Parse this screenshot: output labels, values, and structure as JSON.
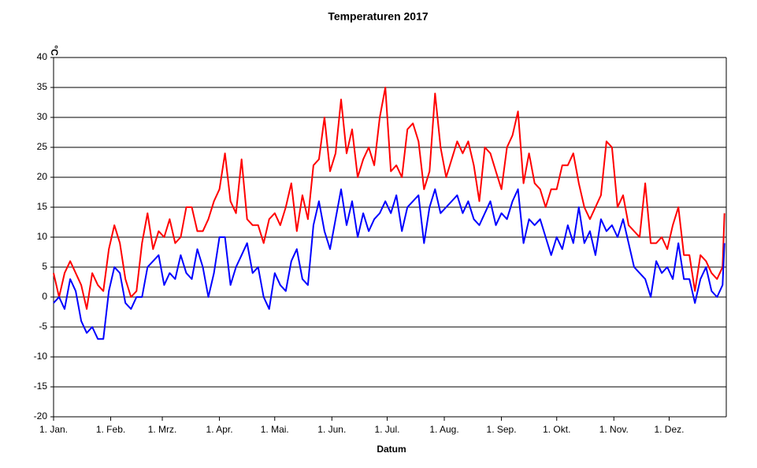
{
  "chart_data": {
    "type": "line",
    "title": "Temperaturen 2017",
    "x_label": "Datum",
    "y_label": "°C",
    "x": [
      0,
      3,
      6,
      9,
      12,
      15,
      18,
      21,
      24,
      27,
      30,
      33,
      36,
      39,
      42,
      45,
      48,
      51,
      54,
      57,
      60,
      63,
      66,
      69,
      72,
      75,
      78,
      81,
      84,
      87,
      90,
      93,
      96,
      99,
      102,
      105,
      108,
      111,
      114,
      117,
      120,
      123,
      126,
      129,
      132,
      135,
      138,
      141,
      144,
      147,
      150,
      153,
      156,
      159,
      162,
      165,
      168,
      171,
      174,
      177,
      180,
      183,
      186,
      189,
      192,
      195,
      198,
      201,
      204,
      207,
      210,
      213,
      216,
      219,
      222,
      225,
      228,
      231,
      234,
      237,
      240,
      243,
      246,
      249,
      252,
      255,
      258,
      261,
      264,
      267,
      270,
      273,
      276,
      279,
      282,
      285,
      288,
      291,
      294,
      297,
      300,
      303,
      306,
      309,
      312,
      315,
      318,
      321,
      324,
      327,
      330,
      333,
      336,
      339,
      342,
      345,
      348,
      351,
      354,
      357,
      360,
      363,
      364
    ],
    "series": [
      {
        "color": "#ff0000",
        "values": [
          4,
          0,
          4,
          6,
          4,
          2,
          -2,
          4,
          2,
          1,
          8,
          12,
          9,
          3,
          0,
          1,
          9,
          14,
          8,
          11,
          10,
          13,
          9,
          10,
          15,
          15,
          11,
          11,
          13,
          16,
          18,
          24,
          16,
          14,
          23,
          13,
          12,
          12,
          9,
          13,
          14,
          12,
          15,
          19,
          11,
          17,
          13,
          22,
          23,
          30,
          21,
          24,
          33,
          24,
          28,
          20,
          23,
          25,
          22,
          30,
          35,
          21,
          22,
          20,
          28,
          29,
          26,
          18,
          21,
          34,
          25,
          20,
          23,
          26,
          24,
          26,
          22,
          16,
          25,
          24,
          21,
          18,
          25,
          27,
          31,
          19,
          24,
          19,
          18,
          15,
          18,
          18,
          22,
          22,
          24,
          19,
          15,
          13,
          15,
          17,
          26,
          25,
          15,
          17,
          12,
          11,
          10,
          19,
          9,
          9,
          10,
          8,
          12,
          15,
          7,
          7,
          1,
          7,
          6,
          4,
          3,
          5,
          14
        ]
      },
      {
        "color": "#0000ff",
        "values": [
          -1,
          0,
          -2,
          3,
          1,
          -4,
          -6,
          -5,
          -7,
          -7,
          1,
          5,
          4,
          -1,
          -2,
          0,
          0,
          5,
          6,
          7,
          2,
          4,
          3,
          7,
          4,
          3,
          8,
          5,
          0,
          4,
          10,
          10,
          2,
          5,
          7,
          9,
          4,
          5,
          0,
          -2,
          4,
          2,
          1,
          6,
          8,
          3,
          2,
          12,
          16,
          11,
          8,
          13,
          18,
          12,
          16,
          10,
          14,
          11,
          13,
          14,
          16,
          14,
          17,
          11,
          15,
          16,
          17,
          9,
          15,
          18,
          14,
          15,
          16,
          17,
          14,
          16,
          13,
          12,
          14,
          16,
          12,
          14,
          13,
          16,
          18,
          9,
          13,
          12,
          13,
          10,
          7,
          10,
          8,
          12,
          9,
          15,
          9,
          11,
          7,
          13,
          11,
          12,
          10,
          13,
          9,
          5,
          4,
          3,
          0,
          6,
          4,
          5,
          3,
          9,
          3,
          3,
          -1,
          3,
          5,
          1,
          0,
          2,
          9
        ]
      }
    ],
    "xlim": [
      0,
      365
    ],
    "xticks": [
      {
        "value": 0,
        "label": "1. Jan."
      },
      {
        "value": 31,
        "label": "1. Feb."
      },
      {
        "value": 59,
        "label": "1. Mrz."
      },
      {
        "value": 90,
        "label": "1. Apr."
      },
      {
        "value": 120,
        "label": "1. Mai."
      },
      {
        "value": 151,
        "label": "1. Jun."
      },
      {
        "value": 181,
        "label": "1. Jul."
      },
      {
        "value": 212,
        "label": "1. Aug."
      },
      {
        "value": 243,
        "label": "1. Sep."
      },
      {
        "value": 273,
        "label": "1. Okt."
      },
      {
        "value": 304,
        "label": "1. Nov."
      },
      {
        "value": 334,
        "label": "1. Dez."
      }
    ],
    "ylim": [
      -20,
      40
    ],
    "yticks": [
      -20,
      -15,
      -10,
      -5,
      0,
      5,
      10,
      15,
      20,
      25,
      30,
      35,
      40
    ],
    "grid": true
  }
}
